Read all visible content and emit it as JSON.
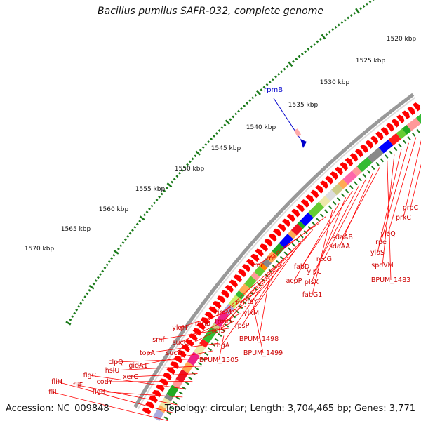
{
  "title": "Bacillus pumilus SAFR-032, complete genome",
  "accession_text": "Accession: NC_009848",
  "summary_text": "Topology: circular; Length: 3,704,465 bp; Genes: 3,771",
  "scale_labels": [
    "1520 kbp",
    "1525 kbp",
    "1530 kbp",
    "1535 kbp",
    "1540 kbp",
    "1545 kbp",
    "1550 kbp",
    "1555 kbp",
    "1560 kbp",
    "1565 kbp",
    "1570 kbp"
  ],
  "highlight_gene": "rpmB",
  "gene_labels": [
    "prpC",
    "prkC",
    "yloQ",
    "rpe",
    "yloS",
    "spoVM",
    "BPUM_1483",
    "sdaAB",
    "sdaAA",
    "recG",
    "ylpC",
    "fabD",
    "plsX",
    "acpP",
    "fabG1",
    "rnc",
    "smc",
    "ftsY",
    "ffh",
    "ylxM",
    "rimM",
    "trmD",
    "rpsP",
    "rplS",
    "BPUM_1498",
    "rbgA",
    "rnhB",
    "BPUM_1499",
    "ylqH",
    "sucC",
    "sucD",
    "smf",
    "BPUM_1505",
    "topA",
    "gidA1",
    "clpQ",
    "hslU",
    "xerC",
    "codY",
    "flgC",
    "flgB",
    "fliF",
    "fliH",
    "fliI"
  ],
  "colors": {
    "gene_arrow": "#ff0000",
    "backbone": "#888888",
    "label_line": "#ff0000",
    "scale_tick": "#1a7a1a",
    "highlight": "#0000cc"
  }
}
